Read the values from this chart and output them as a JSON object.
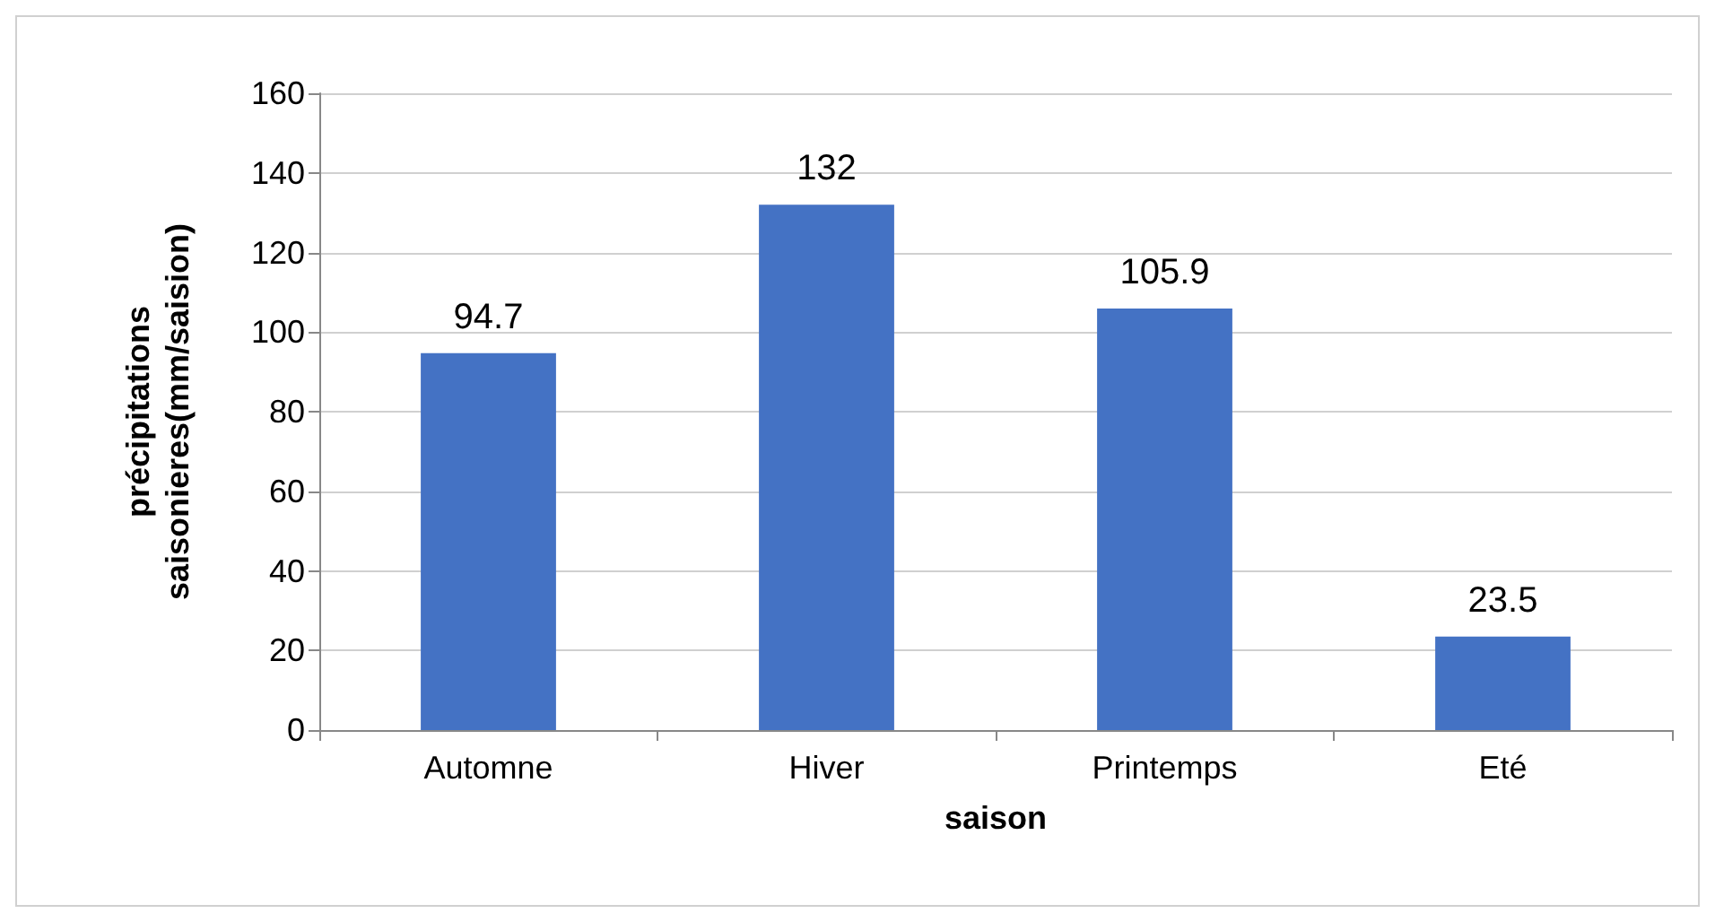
{
  "chart_data": {
    "type": "bar",
    "categories": [
      "Automne",
      "Hiver",
      "Printemps",
      "Eté"
    ],
    "values": [
      94.7,
      132,
      105.9,
      23.5
    ],
    "color": "#4472c4",
    "xlabel": "saison",
    "ylabel": "précipitations\nsaisonieres(mm/saision)",
    "ylim": [
      0,
      160
    ],
    "yticks": [
      0,
      20,
      40,
      60,
      80,
      100,
      120,
      140,
      160
    ],
    "grid": "y",
    "data_labels": true
  }
}
